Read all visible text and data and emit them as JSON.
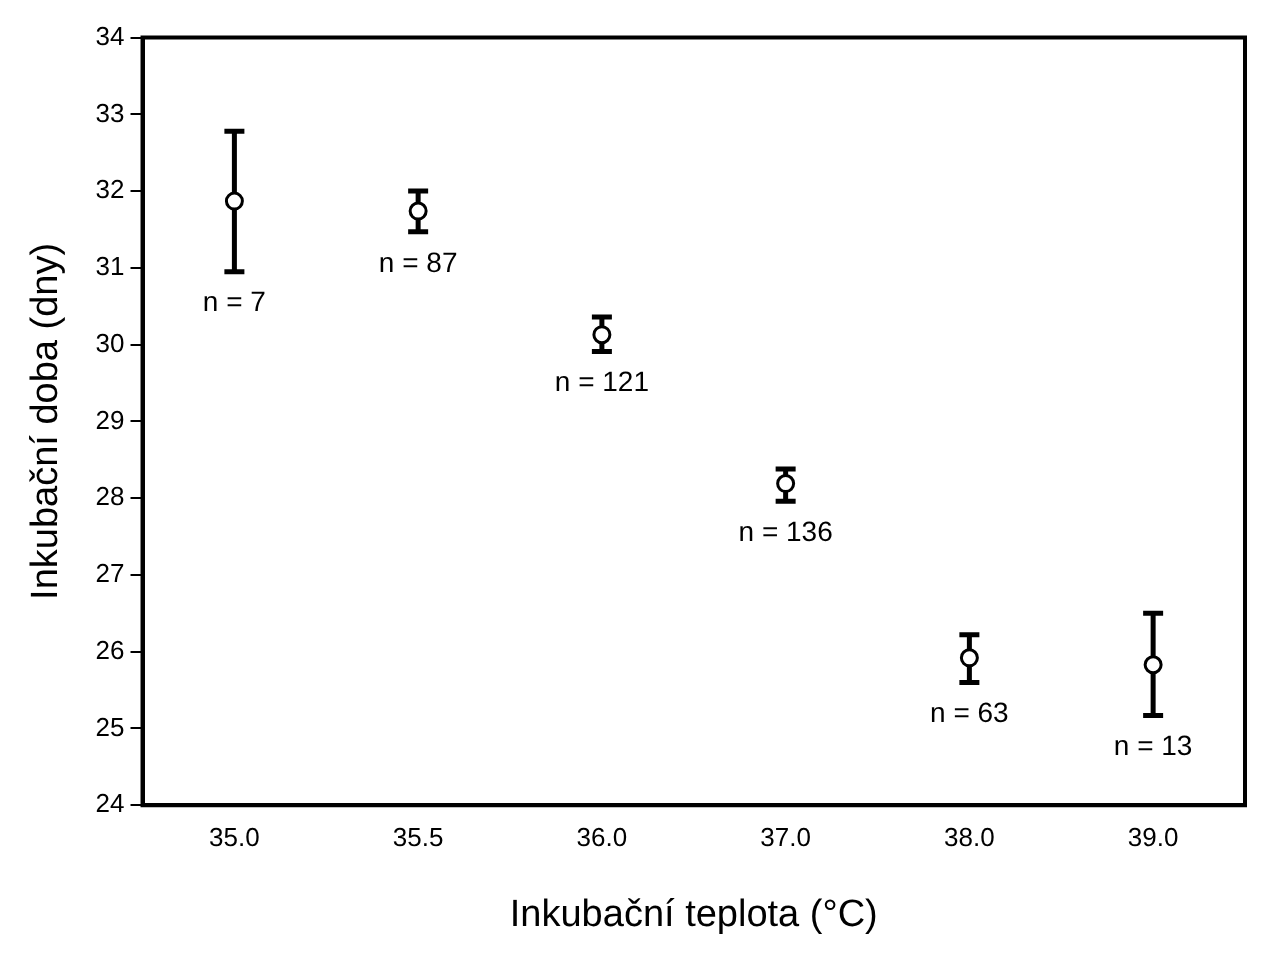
{
  "chart_data": {
    "type": "scatter",
    "xlabel": "Inkubační teplota (°C)",
    "ylabel": "Inkubační doba (dny)",
    "categories": [
      "35.0",
      "35.5",
      "36.0",
      "37.0",
      "38.0",
      "39.0"
    ],
    "series": [
      {
        "color": "#000000",
        "values": [
          31.87,
          31.74,
          30.13,
          28.19,
          25.92,
          25.83
        ],
        "errors": [
          [
            30.95,
            32.78
          ],
          [
            31.47,
            32.0
          ],
          [
            29.91,
            30.36
          ],
          [
            27.96,
            28.38
          ],
          [
            25.6,
            26.22
          ],
          [
            25.17,
            26.5
          ]
        ]
      }
    ],
    "ylim": [
      24,
      34
    ],
    "yticks": [
      24,
      25,
      26,
      27,
      28,
      29,
      30,
      31,
      32,
      33,
      34
    ],
    "annotations": [
      {
        "text": "n = 7",
        "x": "35.0",
        "y": 30.95
      },
      {
        "text": "n = 87",
        "x": "35.5",
        "y": 31.47
      },
      {
        "text": "n = 121",
        "x": "36.0",
        "y": 29.91
      },
      {
        "text": "n = 136",
        "x": "37.0",
        "y": 27.96
      },
      {
        "text": "n = 63",
        "x": "38.0",
        "y": 25.6
      },
      {
        "text": "n = 13",
        "x": "39.0",
        "y": 25.17
      }
    ],
    "grid": false,
    "legend": false,
    "marker": "circle"
  }
}
